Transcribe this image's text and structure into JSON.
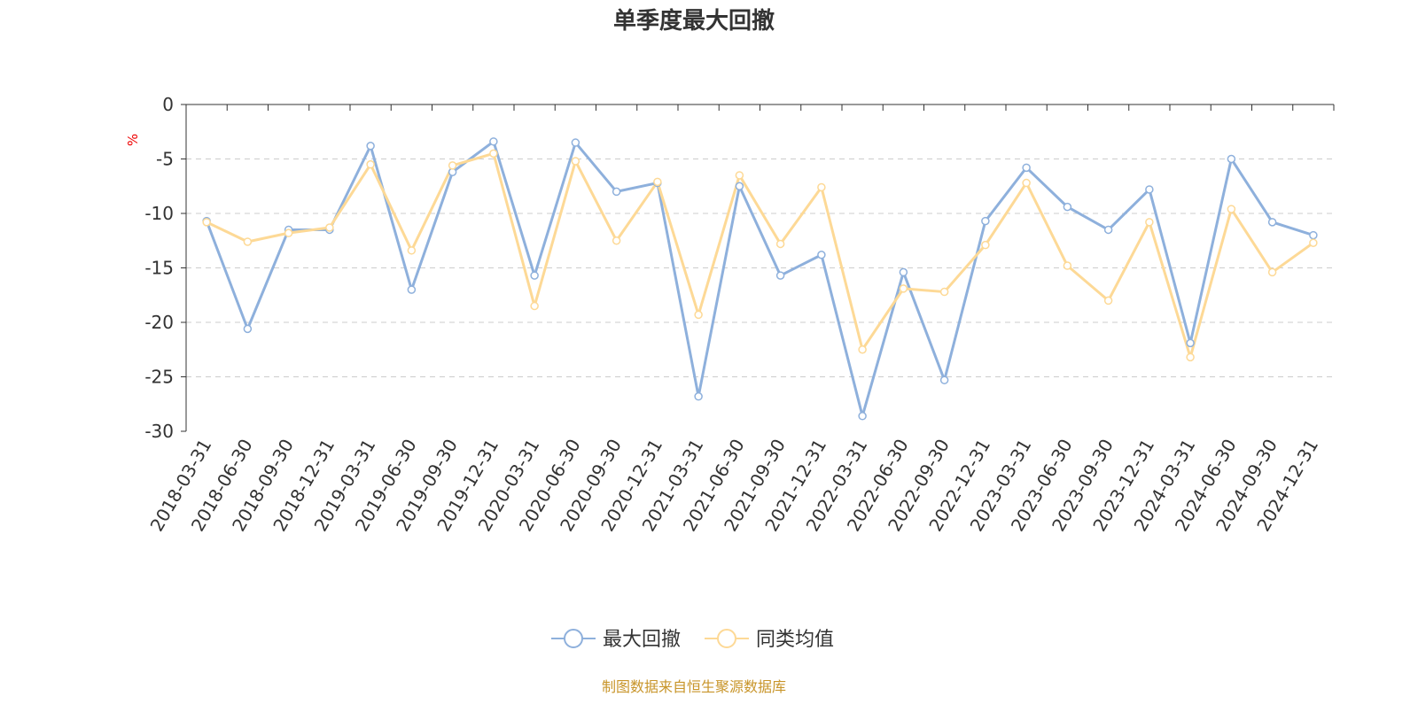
{
  "chart_data": {
    "type": "line",
    "title": "单季度最大回撤",
    "ylabel": "%",
    "xlabel": "",
    "ylim": [
      -30,
      0
    ],
    "yticks": [
      0,
      -5,
      -10,
      -15,
      -20,
      -25,
      -30
    ],
    "grid": "horizontal dashed",
    "legend_position": "bottom",
    "categories": [
      "2018-03-31",
      "2018-06-30",
      "2018-09-30",
      "2018-12-31",
      "2019-03-31",
      "2019-06-30",
      "2019-09-30",
      "2019-12-31",
      "2020-03-31",
      "2020-06-30",
      "2020-09-30",
      "2020-12-31",
      "2021-03-31",
      "2021-06-30",
      "2021-09-30",
      "2021-12-31",
      "2022-03-31",
      "2022-06-30",
      "2022-09-30",
      "2022-12-31",
      "2023-03-31",
      "2023-06-30",
      "2023-09-30",
      "2023-12-31",
      "2024-03-31",
      "2024-06-30",
      "2024-09-30",
      "2024-12-31"
    ],
    "series": [
      {
        "name": "最大回撤",
        "color": "#8eb0dc",
        "values": [
          -10.7,
          -20.6,
          -11.5,
          -11.5,
          -3.8,
          -17.0,
          -6.2,
          -3.4,
          -15.7,
          -3.5,
          -8.0,
          -7.2,
          -26.8,
          -7.5,
          -15.7,
          -13.8,
          -28.6,
          -15.4,
          -25.3,
          -10.7,
          -5.8,
          -9.4,
          -11.5,
          -7.8,
          -21.9,
          -5.0,
          -10.8,
          -12.0
        ]
      },
      {
        "name": "同类均值",
        "color": "#fdd996",
        "values": [
          -10.8,
          -12.6,
          -11.8,
          -11.3,
          -5.5,
          -13.4,
          -5.6,
          -4.5,
          -18.5,
          -5.2,
          -12.5,
          -7.1,
          -19.3,
          -6.5,
          -12.8,
          -7.6,
          -22.5,
          -16.9,
          -17.2,
          -12.9,
          -7.2,
          -14.8,
          -18.0,
          -10.8,
          -23.2,
          -9.6,
          -15.4,
          -12.7
        ]
      }
    ],
    "source": "制图数据来自恒生聚源数据库",
    "source_color": "#c8952a"
  }
}
